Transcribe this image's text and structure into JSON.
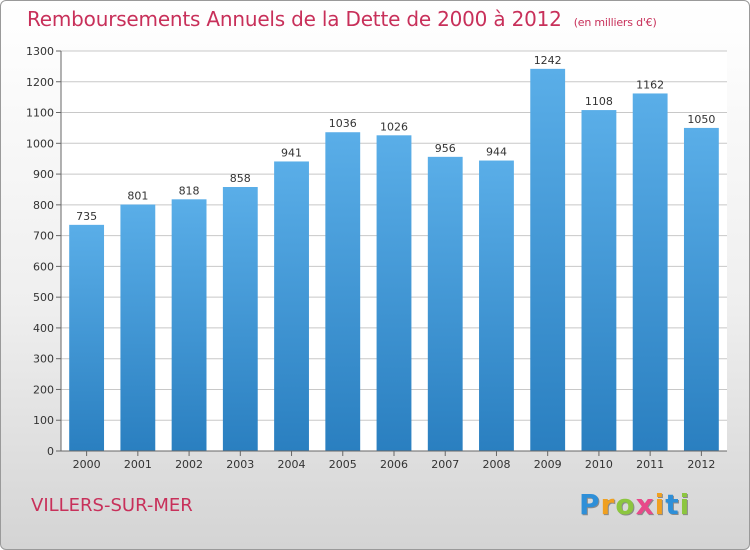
{
  "title": "Remboursements Annuels de la Dette de 2000 à 2012",
  "subtitle": "(en milliers d'€)",
  "location": "VILLERS-SUR-MER",
  "logo": {
    "text": "Proxiti",
    "letters": [
      "P",
      "r",
      "o",
      "x",
      "i",
      "t",
      "i"
    ]
  },
  "colors": {
    "title": "#c8305a",
    "bar_top": "#5aaee8",
    "bar_bottom": "#2a7fc0",
    "grid": "#c8c8c8"
  },
  "chart_data": {
    "type": "bar",
    "title": "Remboursements Annuels de la Dette de 2000 à 2012",
    "subtitle": "(en milliers d'€)",
    "categories": [
      "2000",
      "2001",
      "2002",
      "2003",
      "2004",
      "2005",
      "2006",
      "2007",
      "2008",
      "2009",
      "2010",
      "2011",
      "2012"
    ],
    "values": [
      735,
      801,
      818,
      858,
      941,
      1036,
      1026,
      956,
      944,
      1242,
      1108,
      1162,
      1050
    ],
    "ylim": [
      0,
      1300
    ],
    "yticks": [
      0,
      100,
      200,
      300,
      400,
      500,
      600,
      700,
      800,
      900,
      1000,
      1100,
      1200,
      1300
    ],
    "grid": true,
    "data_labels": true
  }
}
